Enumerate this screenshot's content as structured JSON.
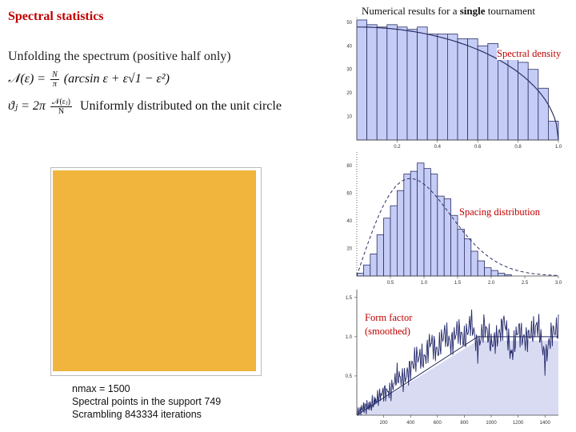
{
  "title": "Spectral statistics",
  "results_caption": {
    "prefix": "Numerical results for a",
    "bold": "single",
    "suffix": "tournament"
  },
  "left": {
    "heading": "Unfolding the spectrum (positive half only)",
    "formula1": {
      "lhs": "𝒩(ε) =",
      "frac_num": "N",
      "frac_den": "π",
      "rhs": "(arcsin ε + ε√1 − ε²)"
    },
    "formula2": {
      "lhs": "ϑⱼ = 2π",
      "frac_num": "𝒩(εⱼ)",
      "frac_den": "N",
      "text": "Uniformly distributed on the unit circle"
    }
  },
  "texture_color": "#f1b43c",
  "info": {
    "line1": "nmax = 1500",
    "line2": "Spectral points in the support 749",
    "line3": "Scrambling   843334  iterations"
  },
  "chart_data": [
    {
      "type": "bar",
      "label": "Spectral density",
      "x_ticks": [
        "0.2",
        "0.4",
        "0.6",
        "0.8",
        "1.0"
      ],
      "y_ticks": [
        "10",
        "20",
        "30",
        "40",
        "50"
      ],
      "xlim": [
        0,
        1.0
      ],
      "ylim": [
        0,
        52
      ],
      "bin_width": 0.05,
      "bins": [
        0.0,
        0.05,
        0.1,
        0.15,
        0.2,
        0.25,
        0.3,
        0.35,
        0.4,
        0.45,
        0.5,
        0.55,
        0.6,
        0.65,
        0.7,
        0.75,
        0.8,
        0.85,
        0.9,
        0.95
      ],
      "values": [
        51,
        49,
        48,
        49,
        48,
        47,
        48,
        45,
        45,
        45,
        43,
        43,
        40,
        41,
        38,
        37,
        33,
        30,
        22,
        8
      ],
      "curve": "semicircle (N/π)·√(1−ε²)",
      "curve_peak": 48
    },
    {
      "type": "bar",
      "label": "Spacing distribution",
      "x_ticks": [
        "0.5",
        "1.0",
        "1.5",
        "2.0",
        "2.5",
        "3.0"
      ],
      "y_ticks": [
        "20",
        "40",
        "60",
        "80"
      ],
      "xlim": [
        0,
        3.0
      ],
      "ylim": [
        0,
        90
      ],
      "bin_width": 0.1,
      "bins": [
        0.0,
        0.1,
        0.2,
        0.3,
        0.4,
        0.5,
        0.6,
        0.7,
        0.8,
        0.9,
        1.0,
        1.1,
        1.2,
        1.3,
        1.4,
        1.5,
        1.6,
        1.7,
        1.8,
        1.9,
        2.0,
        2.1,
        2.2
      ],
      "values": [
        2,
        8,
        16,
        30,
        42,
        51,
        62,
        74,
        76,
        82,
        78,
        74,
        58,
        56,
        44,
        34,
        27,
        18,
        11,
        6,
        4,
        2,
        1
      ],
      "curve": "Wigner surmise (GOE)"
    },
    {
      "type": "area",
      "label": "Form factor (smoothed)",
      "x_ticks": [
        "200",
        "400",
        "600",
        "800",
        "1000",
        "1200",
        "1400"
      ],
      "y_ticks": [
        "0.5",
        "1.0",
        "1.5"
      ],
      "xlim": [
        0,
        1500
      ],
      "ylim": [
        0,
        1.6
      ],
      "plateau": 1.0,
      "area_level": 0.95,
      "x": [
        0,
        50,
        100,
        150,
        200,
        250,
        300,
        350,
        400,
        450,
        500,
        550,
        600,
        650,
        700,
        750,
        800,
        850,
        900,
        950,
        1000,
        1050,
        1100,
        1150,
        1200,
        1250,
        1300,
        1350,
        1400,
        1450,
        1500
      ],
      "y": [
        0.0,
        0.1,
        0.12,
        0.2,
        0.3,
        0.3,
        0.5,
        0.45,
        0.6,
        0.75,
        0.7,
        0.95,
        0.8,
        1.05,
        0.9,
        1.1,
        0.95,
        1.2,
        0.85,
        1.15,
        0.9,
        1.0,
        1.2,
        0.75,
        1.1,
        0.95,
        1.05,
        1.15,
        0.7,
        1.05,
        1.1
      ]
    }
  ]
}
